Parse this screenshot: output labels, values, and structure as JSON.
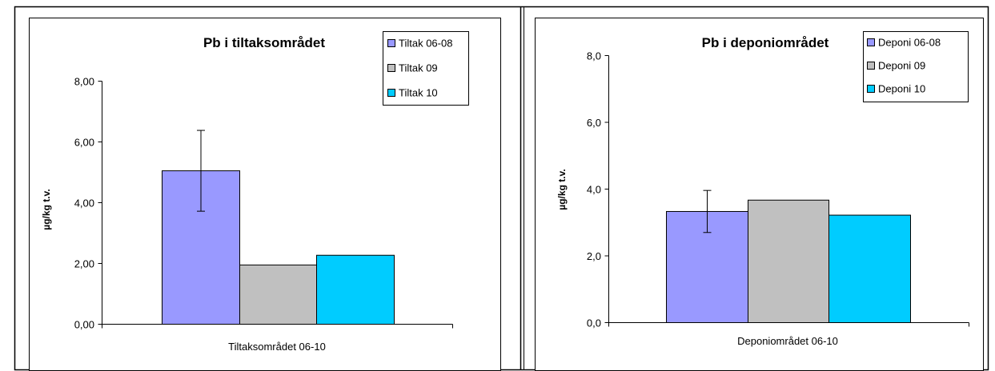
{
  "colors": {
    "series1": "#9999ff",
    "series2": "#c0c0c0",
    "series3": "#00ccff",
    "border": "#000000"
  },
  "chart_data": [
    {
      "type": "bar",
      "title": "Pb i tiltaksområdet",
      "xlabel": "Tiltaksområdet 06-10",
      "ylabel": "µg/kg t.v.",
      "ylim": [
        0,
        8
      ],
      "yticks": [
        "0,00",
        "2,00",
        "4,00",
        "6,00",
        "8,00"
      ],
      "grid": false,
      "legend_position": "top-right",
      "categories": [
        "Tiltaksområdet 06-10"
      ],
      "series": [
        {
          "name": "Tiltak 06-08",
          "values": [
            5.05
          ],
          "error": [
            1.33
          ],
          "color": "#9999ff"
        },
        {
          "name": "Tiltak 09",
          "values": [
            1.95
          ],
          "color": "#c0c0c0"
        },
        {
          "name": "Tiltak 10",
          "values": [
            2.27
          ],
          "color": "#00ccff"
        }
      ]
    },
    {
      "type": "bar",
      "title": "Pb i deponiområdet",
      "xlabel": "Deponiområdet 06-10",
      "ylabel": "µg/kg t.v.",
      "ylim": [
        0,
        8
      ],
      "yticks": [
        "0,0",
        "2,0",
        "4,0",
        "6,0",
        "8,0"
      ],
      "grid": false,
      "legend_position": "top-right",
      "categories": [
        "Deponiområdet 06-10"
      ],
      "series": [
        {
          "name": "Deponi 06-08",
          "values": [
            3.33
          ],
          "error": [
            0.63
          ],
          "color": "#9999ff"
        },
        {
          "name": "Deponi 09",
          "values": [
            3.67
          ],
          "color": "#c0c0c0"
        },
        {
          "name": "Deponi 10",
          "values": [
            3.22
          ],
          "color": "#00ccff"
        }
      ]
    }
  ]
}
